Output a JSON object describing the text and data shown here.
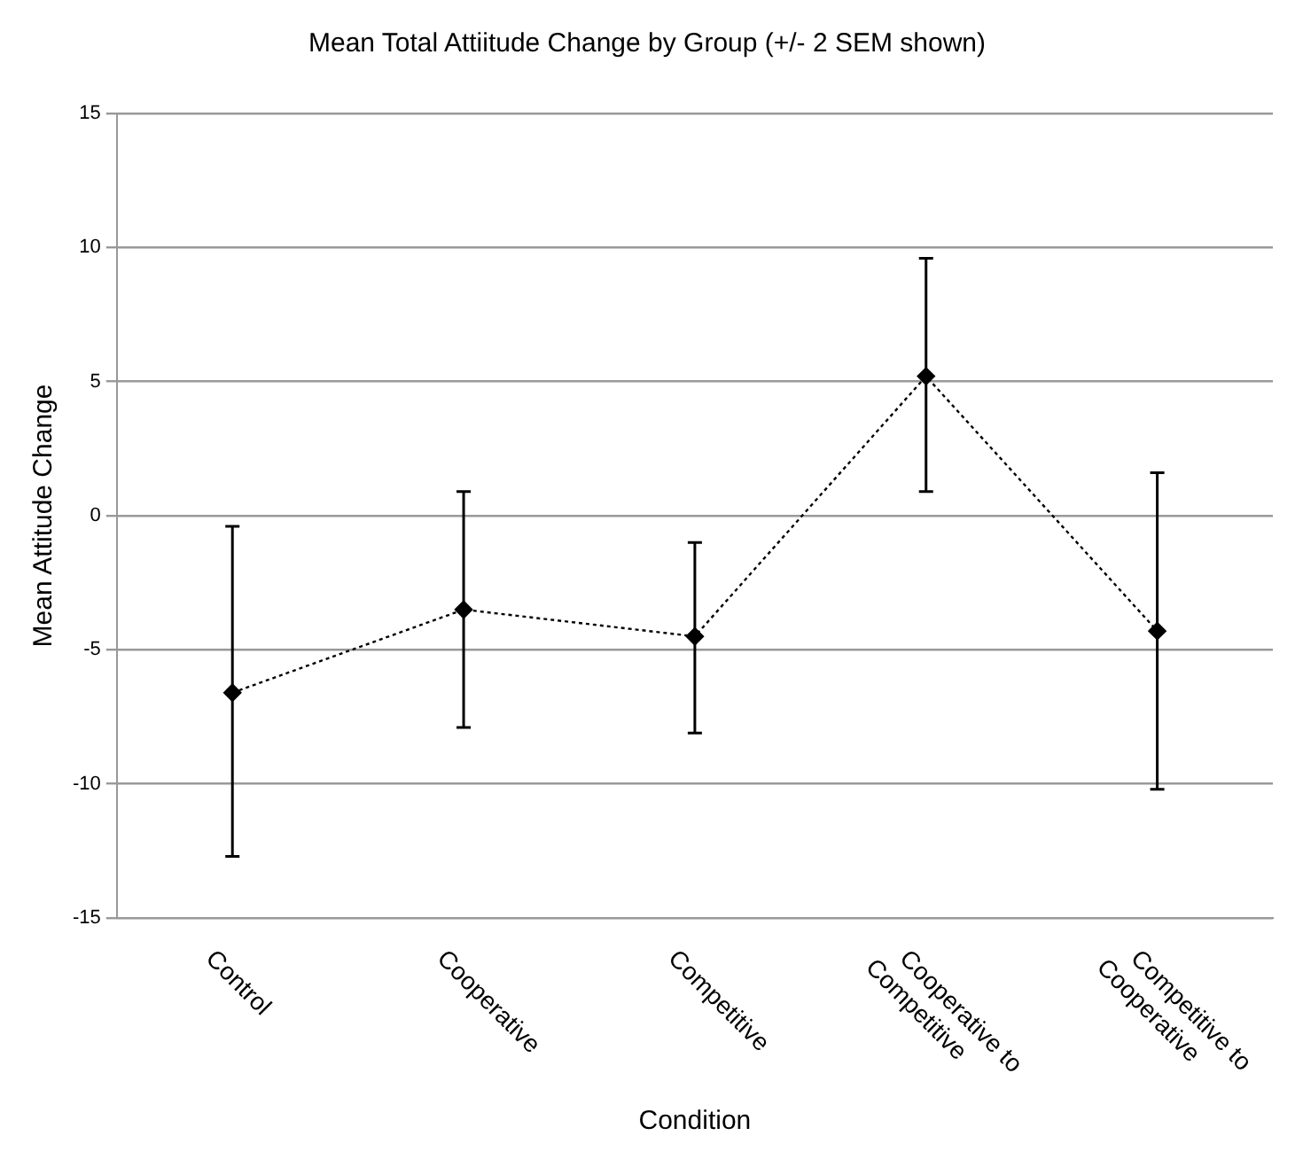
{
  "chart_data": {
    "type": "line",
    "title": "Mean Total Attiitude Change by Group (+/- 2 SEM shown)",
    "xlabel": "Condition",
    "ylabel": "Mean Attitude Change",
    "categories": [
      "Control",
      "Cooperative",
      "Competitive",
      "Cooperative to Competitive",
      "Competitive to Cooperative"
    ],
    "color": "#000000",
    "values": [
      -6.6,
      -3.5,
      -4.5,
      5.2,
      -4.3
    ],
    "errors": [
      [
        -12.7,
        -0.4
      ],
      [
        -7.9,
        0.9
      ],
      [
        -8.1,
        -1.0
      ],
      [
        0.9,
        9.6
      ],
      [
        -10.2,
        1.6
      ]
    ],
    "ylim": [
      -15,
      15
    ],
    "yticks": [
      -15,
      -10,
      -5,
      0,
      5,
      10,
      15
    ],
    "grid": "y",
    "legend": false,
    "marker": "diamond",
    "line_style": "dotted"
  }
}
